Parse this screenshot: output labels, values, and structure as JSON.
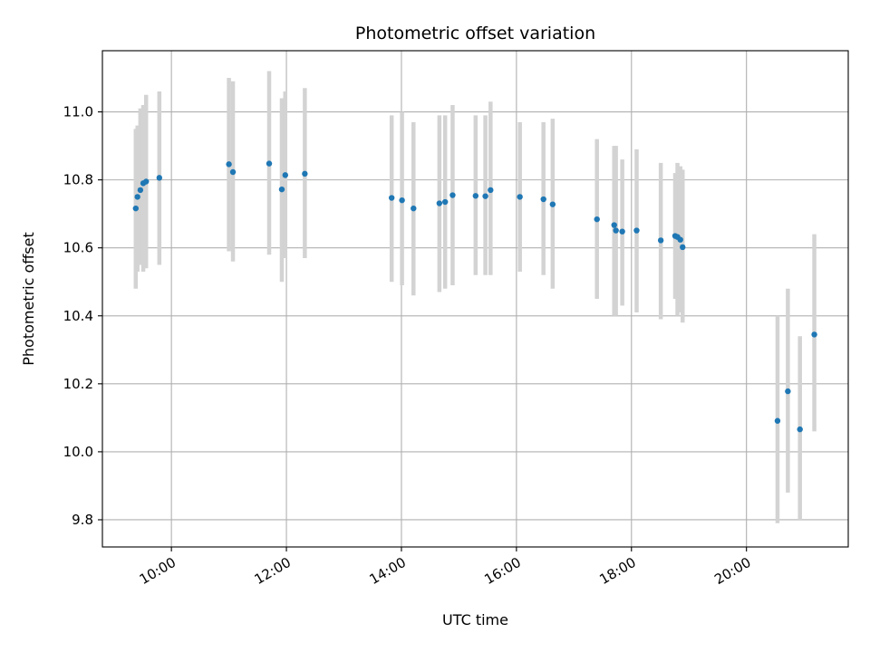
{
  "chart_data": {
    "type": "scatter",
    "title": "Photometric offset variation",
    "xlabel": "UTC time",
    "ylabel": "Photometric offset",
    "x_unit": "hours (UTC)",
    "xlim": [
      8.8,
      21.77
    ],
    "ylim": [
      9.72,
      11.18
    ],
    "x_ticks": [
      {
        "value": 10,
        "label": "10:00"
      },
      {
        "value": 12,
        "label": "12:00"
      },
      {
        "value": 14,
        "label": "14:00"
      },
      {
        "value": 16,
        "label": "16:00"
      },
      {
        "value": 18,
        "label": "18:00"
      },
      {
        "value": 20,
        "label": "20:00"
      }
    ],
    "y_ticks": [
      {
        "value": 9.8,
        "label": "9.8"
      },
      {
        "value": 10.0,
        "label": "10.0"
      },
      {
        "value": 10.2,
        "label": "10.2"
      },
      {
        "value": 10.4,
        "label": "10.4"
      },
      {
        "value": 10.6,
        "label": "10.6"
      },
      {
        "value": 10.8,
        "label": "10.8"
      },
      {
        "value": 11.0,
        "label": "11.0"
      }
    ],
    "grid": true,
    "point_color": "#1f77b4",
    "errorbar_color": "#d3d3d3",
    "points": [
      {
        "x": 9.38,
        "y": 10.716,
        "ylow": 10.48,
        "yhigh": 10.95
      },
      {
        "x": 9.41,
        "y": 10.75,
        "ylow": 10.53,
        "yhigh": 10.96
      },
      {
        "x": 9.46,
        "y": 10.77,
        "ylow": 10.55,
        "yhigh": 11.01
      },
      {
        "x": 9.51,
        "y": 10.79,
        "ylow": 10.53,
        "yhigh": 11.02
      },
      {
        "x": 9.56,
        "y": 10.795,
        "ylow": 10.54,
        "yhigh": 11.05
      },
      {
        "x": 9.79,
        "y": 10.806,
        "ylow": 10.55,
        "yhigh": 11.06
      },
      {
        "x": 11.0,
        "y": 10.846,
        "ylow": 10.59,
        "yhigh": 11.1
      },
      {
        "x": 11.07,
        "y": 10.823,
        "ylow": 10.56,
        "yhigh": 11.09
      },
      {
        "x": 11.7,
        "y": 10.848,
        "ylow": 10.58,
        "yhigh": 11.12
      },
      {
        "x": 11.92,
        "y": 10.772,
        "ylow": 10.5,
        "yhigh": 11.04
      },
      {
        "x": 11.98,
        "y": 10.814,
        "ylow": 10.57,
        "yhigh": 11.06
      },
      {
        "x": 12.32,
        "y": 10.818,
        "ylow": 10.57,
        "yhigh": 11.07
      },
      {
        "x": 13.83,
        "y": 10.747,
        "ylow": 10.5,
        "yhigh": 10.99
      },
      {
        "x": 14.01,
        "y": 10.74,
        "ylow": 10.49,
        "yhigh": 11.0
      },
      {
        "x": 14.21,
        "y": 10.716,
        "ylow": 10.46,
        "yhigh": 10.97
      },
      {
        "x": 14.66,
        "y": 10.731,
        "ylow": 10.47,
        "yhigh": 10.99
      },
      {
        "x": 14.76,
        "y": 10.735,
        "ylow": 10.48,
        "yhigh": 10.99
      },
      {
        "x": 14.89,
        "y": 10.755,
        "ylow": 10.49,
        "yhigh": 11.02
      },
      {
        "x": 15.29,
        "y": 10.753,
        "ylow": 10.52,
        "yhigh": 10.99
      },
      {
        "x": 15.46,
        "y": 10.752,
        "ylow": 10.52,
        "yhigh": 10.99
      },
      {
        "x": 15.55,
        "y": 10.77,
        "ylow": 10.52,
        "yhigh": 11.03
      },
      {
        "x": 16.06,
        "y": 10.75,
        "ylow": 10.53,
        "yhigh": 10.97
      },
      {
        "x": 16.47,
        "y": 10.743,
        "ylow": 10.52,
        "yhigh": 10.97
      },
      {
        "x": 16.63,
        "y": 10.728,
        "ylow": 10.48,
        "yhigh": 10.98
      },
      {
        "x": 17.4,
        "y": 10.684,
        "ylow": 10.45,
        "yhigh": 10.92
      },
      {
        "x": 17.7,
        "y": 10.667,
        "ylow": 10.4,
        "yhigh": 10.9
      },
      {
        "x": 17.73,
        "y": 10.651,
        "ylow": 10.4,
        "yhigh": 10.9
      },
      {
        "x": 17.84,
        "y": 10.648,
        "ylow": 10.43,
        "yhigh": 10.86
      },
      {
        "x": 18.09,
        "y": 10.651,
        "ylow": 10.41,
        "yhigh": 10.89
      },
      {
        "x": 18.51,
        "y": 10.622,
        "ylow": 10.39,
        "yhigh": 10.85
      },
      {
        "x": 18.76,
        "y": 10.635,
        "ylow": 10.45,
        "yhigh": 10.82
      },
      {
        "x": 18.8,
        "y": 10.632,
        "ylow": 10.4,
        "yhigh": 10.85
      },
      {
        "x": 18.85,
        "y": 10.624,
        "ylow": 10.41,
        "yhigh": 10.84
      },
      {
        "x": 18.89,
        "y": 10.602,
        "ylow": 10.38,
        "yhigh": 10.83
      },
      {
        "x": 20.54,
        "y": 10.091,
        "ylow": 9.79,
        "yhigh": 10.4
      },
      {
        "x": 20.72,
        "y": 10.178,
        "ylow": 9.88,
        "yhigh": 10.48
      },
      {
        "x": 20.93,
        "y": 10.066,
        "ylow": 9.8,
        "yhigh": 10.34
      },
      {
        "x": 21.18,
        "y": 10.345,
        "ylow": 10.06,
        "yhigh": 10.64
      }
    ]
  }
}
